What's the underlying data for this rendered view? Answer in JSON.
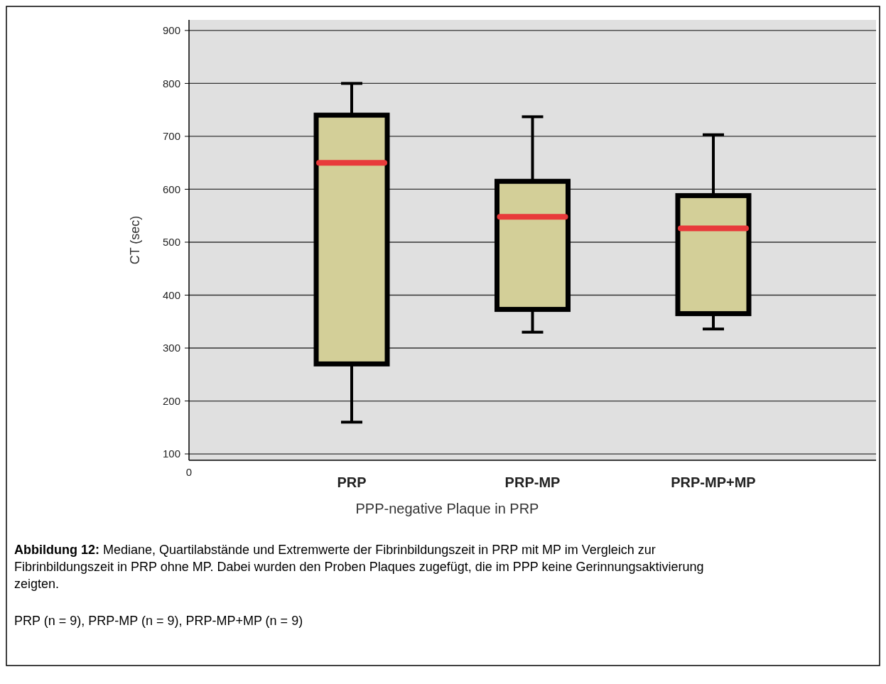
{
  "chart_data": {
    "type": "box",
    "xlabel": "PPP-negative Plaque in PRP",
    "ylabel": "CT (sec)",
    "categories": [
      "PRP",
      "PRP-MP",
      "PRP-MP+MP"
    ],
    "boxes": [
      {
        "low": 160,
        "q1": 270,
        "median": 650,
        "q3": 740,
        "high": 800
      },
      {
        "low": 330,
        "q1": 373,
        "median": 548,
        "q3": 615,
        "high": 737
      },
      {
        "low": 336,
        "q1": 365,
        "median": 526,
        "q3": 588,
        "high": 703
      }
    ],
    "color": "#d3cf98",
    "ylim": [
      88,
      920
    ],
    "yticks": [
      100,
      200,
      300,
      400,
      500,
      600,
      700,
      800,
      900
    ],
    "grid": "y",
    "annotations": [
      "0",
      "Abbildung 12: Mediane, Quartilabstände und Extremwerte der Fibrinbildungszeit in PRP mit MP im Vergleich zur Fibrinbildungszeit in PRP ohne MP. Dabei wurden den Proben Plaques zugefügt, die im PPP keine Gerinnungsaktivierung zeigten.",
      "PRP (n = 9), PRP-MP (n = 9), PRP-MP+MP (n = 9)"
    ]
  }
}
